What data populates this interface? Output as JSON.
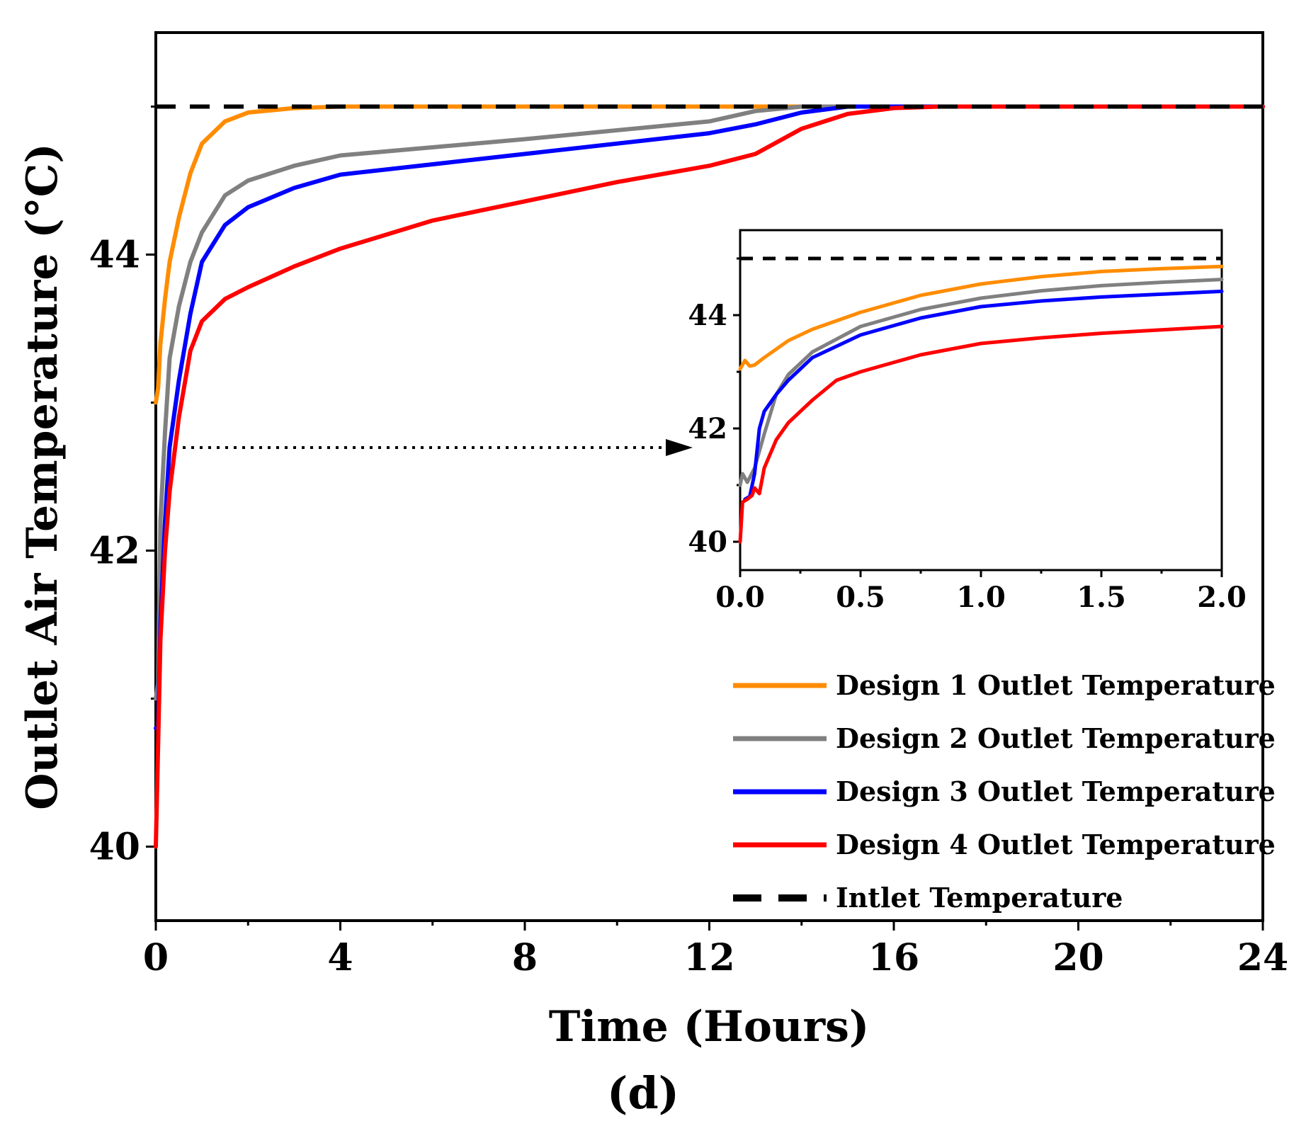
{
  "chart_data": {
    "type": "line",
    "panel_label": "(d)",
    "xlabel": "Time (Hours)",
    "ylabel": "Outlet Air Temperature (°C)",
    "xlim": [
      0,
      24
    ],
    "ylim": [
      39.5,
      45.5
    ],
    "x_ticks": [
      "0",
      "4",
      "8",
      "12",
      "16",
      "20",
      "24"
    ],
    "y_ticks": [
      "40",
      "42",
      "44"
    ],
    "series": [
      {
        "name": "Design 1 Outlet Temperature",
        "color": "#ff8c00",
        "points": [
          [
            0,
            43.0
          ],
          [
            0.05,
            43.1
          ],
          [
            0.1,
            43.4
          ],
          [
            0.2,
            43.7
          ],
          [
            0.3,
            43.95
          ],
          [
            0.5,
            44.25
          ],
          [
            0.75,
            44.55
          ],
          [
            1.0,
            44.75
          ],
          [
            1.5,
            44.9
          ],
          [
            2,
            44.96
          ],
          [
            3,
            44.99
          ],
          [
            4,
            45.0
          ],
          [
            8,
            45.0
          ],
          [
            12,
            45.0
          ],
          [
            14,
            45.0
          ],
          [
            24,
            45.0
          ]
        ]
      },
      {
        "name": "Design 2 Outlet Temperature",
        "color": "#808080",
        "points": [
          [
            0,
            41.0
          ],
          [
            0.05,
            41.1
          ],
          [
            0.1,
            42.2
          ],
          [
            0.2,
            42.8
          ],
          [
            0.3,
            43.3
          ],
          [
            0.5,
            43.65
          ],
          [
            0.75,
            43.95
          ],
          [
            1.0,
            44.15
          ],
          [
            1.5,
            44.4
          ],
          [
            2,
            44.5
          ],
          [
            3,
            44.6
          ],
          [
            4,
            44.67
          ],
          [
            8,
            44.78
          ],
          [
            12,
            44.9
          ],
          [
            13,
            44.97
          ],
          [
            14,
            45.0
          ],
          [
            24,
            45.0
          ]
        ]
      },
      {
        "name": "Design 3 Outlet Temperature",
        "color": "#0000ff",
        "points": [
          [
            0,
            40.8
          ],
          [
            0.05,
            40.8
          ],
          [
            0.1,
            41.5
          ],
          [
            0.2,
            42.2
          ],
          [
            0.3,
            42.7
          ],
          [
            0.5,
            43.15
          ],
          [
            0.75,
            43.6
          ],
          [
            1.0,
            43.95
          ],
          [
            1.5,
            44.2
          ],
          [
            2,
            44.32
          ],
          [
            3,
            44.45
          ],
          [
            4,
            44.54
          ],
          [
            8,
            44.68
          ],
          [
            12,
            44.82
          ],
          [
            13,
            44.88
          ],
          [
            14,
            44.96
          ],
          [
            15,
            45.0
          ],
          [
            24,
            45.0
          ]
        ]
      },
      {
        "name": "Design 4 Outlet Temperature",
        "color": "#ff0000",
        "points": [
          [
            0,
            40.0
          ],
          [
            0.05,
            40.7
          ],
          [
            0.1,
            41.4
          ],
          [
            0.2,
            42.0
          ],
          [
            0.3,
            42.4
          ],
          [
            0.5,
            42.9
          ],
          [
            0.75,
            43.35
          ],
          [
            1.0,
            43.55
          ],
          [
            1.5,
            43.7
          ],
          [
            2,
            43.78
          ],
          [
            3,
            43.92
          ],
          [
            4,
            44.04
          ],
          [
            6,
            44.23
          ],
          [
            8,
            44.36
          ],
          [
            10,
            44.49
          ],
          [
            12,
            44.6
          ],
          [
            13,
            44.68
          ],
          [
            14,
            44.85
          ],
          [
            15,
            44.95
          ],
          [
            16,
            44.99
          ],
          [
            17,
            45.0
          ],
          [
            24,
            45.0
          ]
        ]
      },
      {
        "name": "Intlet Temperature",
        "color": "#000000",
        "dashed": true,
        "points": [
          [
            0,
            45.0
          ],
          [
            24,
            45.0
          ]
        ]
      }
    ],
    "inset": {
      "xlim": [
        0,
        2.0
      ],
      "ylim": [
        39.5,
        45.5
      ],
      "x_ticks": [
        "0.0",
        "0.5",
        "1.0",
        "1.5",
        "2.0"
      ],
      "y_ticks": [
        "40",
        "42",
        "44"
      ],
      "series": [
        {
          "name": "Design 1",
          "color": "#ff8c00",
          "points": [
            [
              0,
              43.05
            ],
            [
              0.02,
              43.2
            ],
            [
              0.04,
              43.1
            ],
            [
              0.06,
              43.12
            ],
            [
              0.1,
              43.25
            ],
            [
              0.2,
              43.55
            ],
            [
              0.3,
              43.75
            ],
            [
              0.5,
              44.05
            ],
            [
              0.75,
              44.35
            ],
            [
              1.0,
              44.55
            ],
            [
              1.25,
              44.68
            ],
            [
              1.5,
              44.77
            ],
            [
              1.75,
              44.82
            ],
            [
              2.0,
              44.86
            ]
          ]
        },
        {
          "name": "Design 2",
          "color": "#808080",
          "points": [
            [
              0,
              41.0
            ],
            [
              0.01,
              41.2
            ],
            [
              0.03,
              41.05
            ],
            [
              0.06,
              41.3
            ],
            [
              0.1,
              41.9
            ],
            [
              0.15,
              42.6
            ],
            [
              0.2,
              42.95
            ],
            [
              0.3,
              43.35
            ],
            [
              0.5,
              43.8
            ],
            [
              0.75,
              44.1
            ],
            [
              1.0,
              44.3
            ],
            [
              1.25,
              44.43
            ],
            [
              1.5,
              44.52
            ],
            [
              1.75,
              44.58
            ],
            [
              2.0,
              44.63
            ]
          ]
        },
        {
          "name": "Design 3",
          "color": "#0000ff",
          "points": [
            [
              0.02,
              40.75
            ],
            [
              0.04,
              40.8
            ],
            [
              0.06,
              41.2
            ],
            [
              0.08,
              42.0
            ],
            [
              0.1,
              42.3
            ],
            [
              0.15,
              42.6
            ],
            [
              0.2,
              42.85
            ],
            [
              0.3,
              43.25
            ],
            [
              0.5,
              43.65
            ],
            [
              0.75,
              43.95
            ],
            [
              1.0,
              44.15
            ],
            [
              1.25,
              44.25
            ],
            [
              1.5,
              44.32
            ],
            [
              1.75,
              44.37
            ],
            [
              2.0,
              44.42
            ]
          ]
        },
        {
          "name": "Design 4",
          "color": "#ff0000",
          "points": [
            [
              0,
              40.0
            ],
            [
              0.01,
              40.7
            ],
            [
              0.03,
              40.75
            ],
            [
              0.05,
              40.82
            ],
            [
              0.06,
              40.95
            ],
            [
              0.08,
              40.85
            ],
            [
              0.1,
              41.3
            ],
            [
              0.15,
              41.8
            ],
            [
              0.2,
              42.1
            ],
            [
              0.3,
              42.5
            ],
            [
              0.4,
              42.85
            ],
            [
              0.5,
              43.0
            ],
            [
              0.75,
              43.3
            ],
            [
              1.0,
              43.5
            ],
            [
              1.25,
              43.6
            ],
            [
              1.5,
              43.68
            ],
            [
              1.75,
              43.74
            ],
            [
              2.0,
              43.8
            ]
          ]
        },
        {
          "name": "Intlet",
          "color": "#000000",
          "dashed": true,
          "points": [
            [
              0,
              45.0
            ],
            [
              2.0,
              45.0
            ]
          ]
        }
      ]
    },
    "legend": {
      "position": "lower-right",
      "entries": [
        {
          "label": "Design 1 Outlet Temperature",
          "color": "#ff8c00",
          "dashed": false
        },
        {
          "label": "Design 2 Outlet Temperature",
          "color": "#808080",
          "dashed": false
        },
        {
          "label": "Design 3 Outlet Temperature",
          "color": "#0000ff",
          "dashed": false
        },
        {
          "label": "Design 4 Outlet Temperature",
          "color": "#ff0000",
          "dashed": false
        },
        {
          "label": "Intlet Temperature",
          "color": "#000000",
          "dashed": true
        }
      ]
    },
    "zoom_arrow": {
      "from_x": 0.3,
      "y": 42.7,
      "meaning": "inset zoom of 0-2 h"
    }
  }
}
